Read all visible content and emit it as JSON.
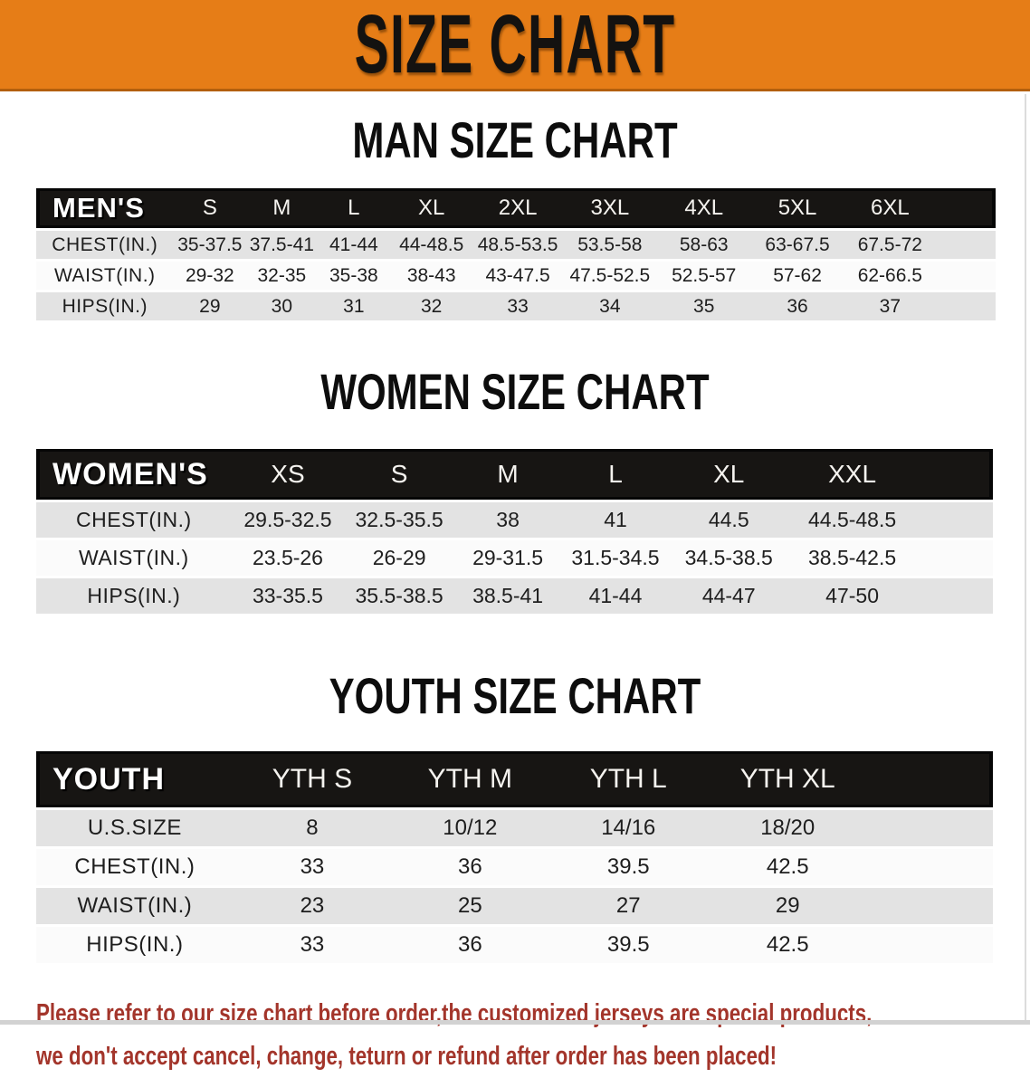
{
  "banner": {
    "title": "SIZE CHART",
    "bg_color": "#E67D17"
  },
  "sections": [
    {
      "heading": "MAN SIZE CHART",
      "group_label": "MEN'S",
      "sizes": [
        "S",
        "M",
        "L",
        "XL",
        "2XL",
        "3XL",
        "4XL",
        "5XL",
        "6XL"
      ],
      "rows": [
        {
          "label": "CHEST(IN.)",
          "values": [
            "35-37.5",
            "37.5-41",
            "41-44",
            "44-48.5",
            "48.5-53.5",
            "53.5-58",
            "58-63",
            "63-67.5",
            "67.5-72"
          ]
        },
        {
          "label": "WAIST(IN.)",
          "values": [
            "29-32",
            "32-35",
            "35-38",
            "38-43",
            "43-47.5",
            "47.5-52.5",
            "52.5-57",
            "57-62",
            "62-66.5"
          ]
        },
        {
          "label": "HIPS(IN.)",
          "values": [
            "29",
            "30",
            "31",
            "32",
            "33",
            "34",
            "35",
            "36",
            "37"
          ]
        }
      ]
    },
    {
      "heading": "WOMEN SIZE CHART",
      "group_label": "WOMEN'S",
      "sizes": [
        "XS",
        "S",
        "M",
        "L",
        "XL",
        "XXL"
      ],
      "rows": [
        {
          "label": "CHEST(IN.)",
          "values": [
            "29.5-32.5",
            "32.5-35.5",
            "38",
            "41",
            "44.5",
            "44.5-48.5"
          ]
        },
        {
          "label": "WAIST(IN.)",
          "values": [
            "23.5-26",
            "26-29",
            "29-31.5",
            "31.5-34.5",
            "34.5-38.5",
            "38.5-42.5"
          ]
        },
        {
          "label": "HIPS(IN.)",
          "values": [
            "33-35.5",
            "35.5-38.5",
            "38.5-41",
            "41-44",
            "44-47",
            "47-50"
          ]
        }
      ]
    },
    {
      "heading": "YOUTH SIZE CHART",
      "group_label": "YOUTH",
      "sizes": [
        "YTH S",
        "YTH M",
        "YTH L",
        "YTH XL"
      ],
      "rows": [
        {
          "label": "U.S.SIZE",
          "values": [
            "8",
            "10/12",
            "14/16",
            "18/20"
          ]
        },
        {
          "label": "CHEST(IN.)",
          "values": [
            "33",
            "36",
            "39.5",
            "42.5"
          ]
        },
        {
          "label": "WAIST(IN.)",
          "values": [
            "23",
            "25",
            "27",
            "29"
          ]
        },
        {
          "label": "HIPS(IN.)",
          "values": [
            "33",
            "36",
            "39.5",
            "42.5"
          ]
        }
      ]
    }
  ],
  "footer": {
    "lines": [
      "Please refer to our size chart before order,the customized jerseys are special products,",
      "we don't accept cancel, change, teturn or refund after order has been placed!"
    ],
    "color": "#A3352B"
  }
}
